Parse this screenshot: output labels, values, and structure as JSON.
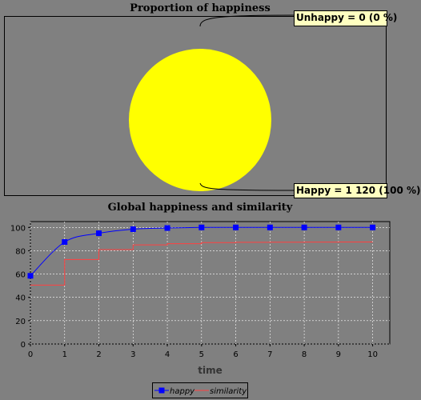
{
  "chart_data": [
    {
      "type": "pie",
      "title": "Proportion of happiness",
      "slices": [
        {
          "name": "Unhappy",
          "value": 0,
          "label": "Unhappy = 0 (0 %)",
          "color": "#ff4444"
        },
        {
          "name": "Happy",
          "value": 1120,
          "label": "Happy = 1 120 (100 %)",
          "color": "#ffff00"
        }
      ]
    },
    {
      "type": "line",
      "title": "Global happiness and similarity",
      "xlabel": "time",
      "ylabel": "",
      "xlim": [
        0,
        10.5
      ],
      "ylim": [
        0,
        105
      ],
      "x_ticks": [
        0,
        1,
        2,
        3,
        4,
        5,
        6,
        7,
        8,
        9,
        10
      ],
      "y_ticks": [
        0,
        20,
        40,
        60,
        80,
        100
      ],
      "grid": true,
      "legend_position": "bottom",
      "x": [
        0,
        1,
        2,
        3,
        4,
        5,
        6,
        7,
        8,
        9,
        10
      ],
      "series": [
        {
          "name": "happy",
          "values": [
            58.5,
            87.5,
            95,
            98.5,
            99.5,
            100,
            100,
            100,
            100,
            100,
            100
          ],
          "color": "#0000ff",
          "style": "smooth-with-square-markers"
        },
        {
          "name": "similarity",
          "values": [
            50.5,
            72.5,
            81,
            85,
            86,
            87,
            87.2,
            87.3,
            87.4,
            87.5,
            87.5
          ],
          "color": "#ff4040",
          "style": "step"
        }
      ]
    }
  ]
}
